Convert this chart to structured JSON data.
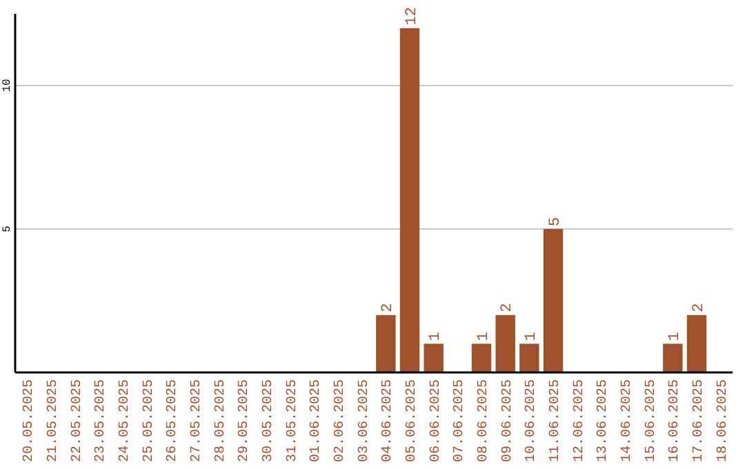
{
  "chart_data": {
    "type": "bar",
    "categories": [
      "20.05.2025",
      "21.05.2025",
      "22.05.2025",
      "23.05.2025",
      "24.05.2025",
      "25.05.2025",
      "26.05.2025",
      "27.05.2025",
      "28.05.2025",
      "29.05.2025",
      "30.05.2025",
      "31.05.2025",
      "01.06.2025",
      "02.06.2025",
      "03.06.2025",
      "04.06.2025",
      "05.06.2025",
      "06.06.2025",
      "07.06.2025",
      "08.06.2025",
      "09.06.2025",
      "10.06.2025",
      "11.06.2025",
      "12.06.2025",
      "13.06.2025",
      "14.06.2025",
      "15.06.2025",
      "16.06.2025",
      "17.06.2025",
      "18.06.2025"
    ],
    "values": [
      0,
      0,
      0,
      0,
      0,
      0,
      0,
      0,
      0,
      0,
      0,
      0,
      0,
      0,
      0,
      2,
      12,
      1,
      0,
      1,
      2,
      1,
      5,
      0,
      0,
      0,
      0,
      1,
      2,
      0
    ],
    "value_labels": [
      null,
      null,
      null,
      null,
      null,
      null,
      null,
      null,
      null,
      null,
      null,
      null,
      null,
      null,
      null,
      "2",
      "12",
      "1",
      null,
      "1",
      "2",
      "1",
      "5",
      null,
      null,
      null,
      null,
      "1",
      "2",
      null
    ],
    "color": "#a0522d",
    "ylim": [
      0,
      12.5
    ],
    "yticks": [
      5,
      10
    ],
    "grid": "y"
  }
}
